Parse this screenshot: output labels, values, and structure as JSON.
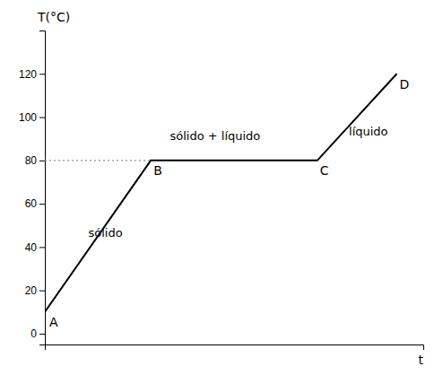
{
  "chart_data": {
    "type": "line",
    "xlabel": "t",
    "ylabel": "T(°C)",
    "series": [
      {
        "color": "#000000",
        "line_style": "solid",
        "x": [
          0.0,
          2.8,
          7.2,
          9.3
        ],
        "values": [
          10,
          80,
          80,
          120
        ]
      },
      {
        "color": "#909090",
        "line_style": "dotted",
        "x": [
          0,
          2.8
        ],
        "values": [
          80,
          80
        ]
      }
    ],
    "xlim": [
      0,
      10
    ],
    "ylim": [
      -5,
      140
    ],
    "yticks": [
      0,
      20,
      40,
      60,
      80,
      100,
      120
    ],
    "tick_labels": "y",
    "grid": false,
    "annotations": [
      {
        "text": "A",
        "x": 0.05,
        "y": 10
      },
      {
        "text": "B",
        "x": 2.8,
        "y": 80
      },
      {
        "text": "C",
        "x": 7.2,
        "y": 80
      },
      {
        "text": "D",
        "x": 9.3,
        "y": 120
      },
      {
        "text": "sólido",
        "x": 1.6,
        "y": 46
      },
      {
        "text": "sólido + líquido",
        "x": 4.5,
        "y": 91
      },
      {
        "text": "líquido",
        "x": 8.55,
        "y": 93
      }
    ]
  }
}
